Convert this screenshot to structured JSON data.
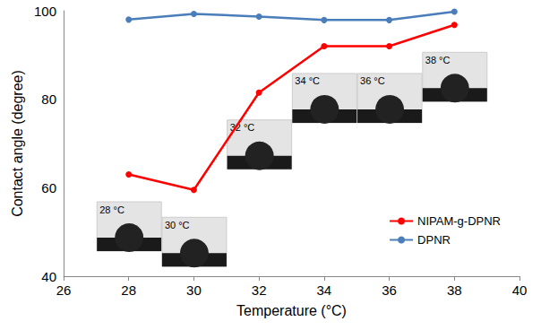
{
  "chart_data": {
    "type": "line",
    "x_label": "Temperature (°C)",
    "y_label": "Contact angle (degree)",
    "x": [
      28,
      30,
      32,
      34,
      36,
      38
    ],
    "series": [
      {
        "name": "NIPAM-g-DPNR",
        "color": "#ff0000",
        "marker": "circle",
        "line_style": "solid",
        "values": [
          63,
          59.5,
          81.5,
          92,
          92,
          96.8
        ]
      },
      {
        "name": "DPNR",
        "color": "#4a7ebb",
        "marker": "circle",
        "line_style": "solid",
        "values": [
          98,
          99.3,
          98.7,
          97.9,
          97.9,
          99.8
        ]
      }
    ],
    "annotations": [
      "28 °C",
      "30 °C",
      "32 °C",
      "34 °C",
      "36 °C",
      "38 °C"
    ],
    "xlim": [
      26,
      40
    ],
    "xticks": [
      26,
      28,
      30,
      32,
      34,
      36,
      38,
      40
    ],
    "ylim": [
      40,
      100
    ],
    "yticks": [
      40,
      60,
      80,
      100
    ],
    "grid": false,
    "legend": "right"
  }
}
